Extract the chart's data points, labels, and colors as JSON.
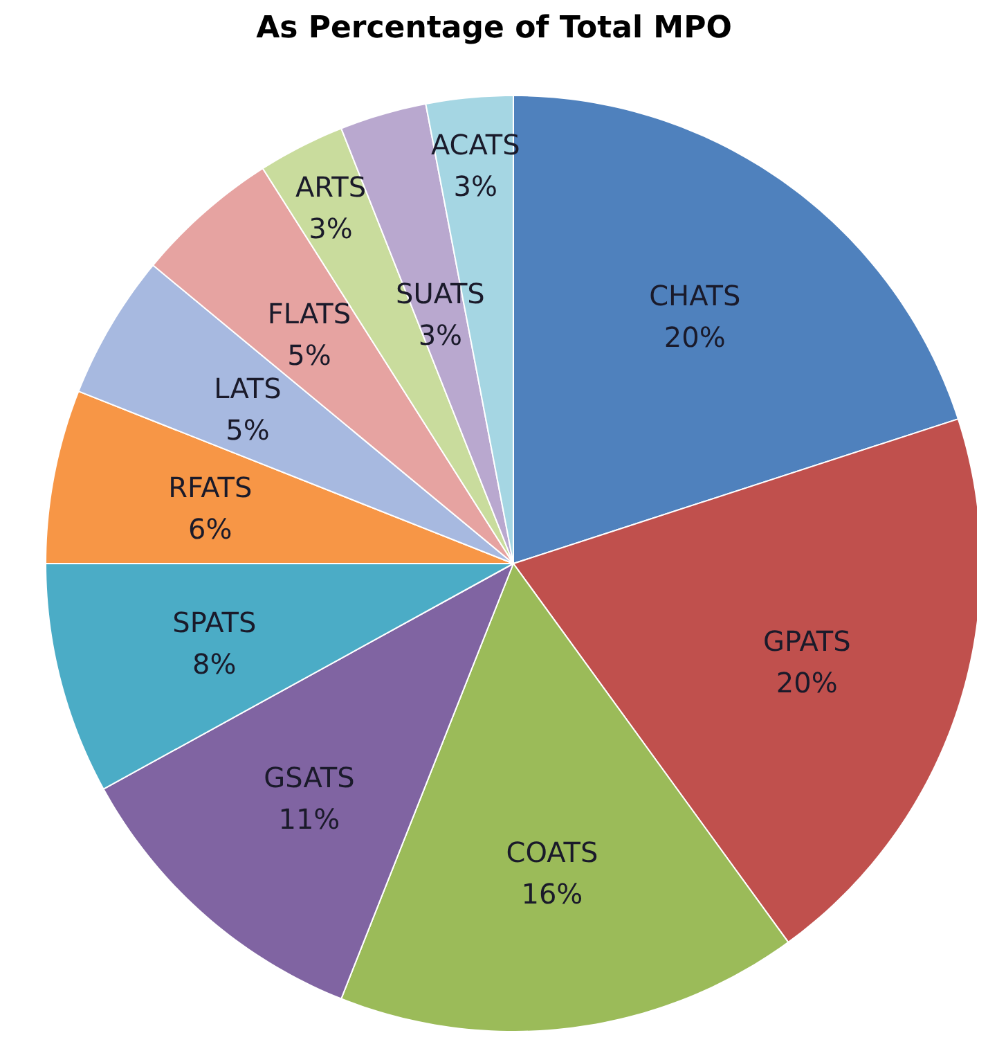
{
  "chart_data": {
    "type": "pie",
    "title": "As Percentage of Total MPO",
    "categories": [
      "CHATS",
      "GPATS",
      "COATS",
      "GSATS",
      "SPATS",
      "RFATS",
      "LATS",
      "FLATS",
      "ARTS",
      "SUATS",
      "ACATS"
    ],
    "values": [
      20,
      20,
      16,
      11,
      8,
      6,
      5,
      5,
      3,
      3,
      3
    ],
    "value_labels": [
      "20%",
      "20%",
      "16%",
      "11%",
      "8%",
      "6%",
      "5%",
      "5%",
      "3%",
      "3%",
      "3%"
    ],
    "colors": [
      "#4f81bd",
      "#c0504d",
      "#9bbb59",
      "#8064a2",
      "#4bacc6",
      "#f79646",
      "#a7b9e0",
      "#e6a3a1",
      "#c9dc9d",
      "#b9a8cf",
      "#a5d6e3"
    ],
    "legend": false
  }
}
